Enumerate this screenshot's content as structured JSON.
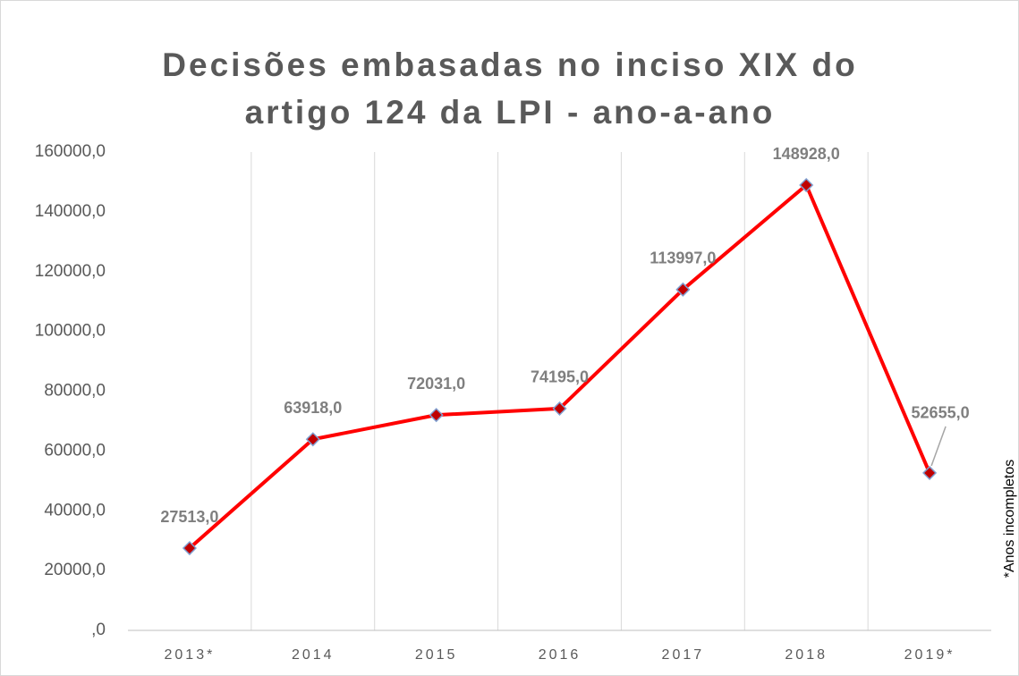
{
  "chart_data": {
    "type": "line",
    "title": [
      "Decisões embasadas no inciso XIX do",
      "artigo 124 da LPI - ano-a-ano"
    ],
    "categories": [
      "2013*",
      "2014",
      "2015",
      "2016",
      "2017",
      "2018",
      "2019*"
    ],
    "series": [
      {
        "name": "Decisões",
        "color": "#ff0000",
        "marker_color": "#c00000",
        "values": [
          27513,
          63918,
          72031,
          74195,
          113997,
          148928,
          52655
        ],
        "value_labels": [
          "27513,0",
          "63918,0",
          "72031,0",
          "74195,0",
          "113997,0",
          "148928,0",
          "52655,0"
        ]
      }
    ],
    "ylim": [
      0,
      160000
    ],
    "yticks": [
      {
        "value": 0,
        "label": ",0"
      },
      {
        "value": 20000,
        "label": "20000,0"
      },
      {
        "value": 40000,
        "label": "40000,0"
      },
      {
        "value": 60000,
        "label": "60000,0"
      },
      {
        "value": 80000,
        "label": "80000,0"
      },
      {
        "value": 100000,
        "label": "100000,0"
      },
      {
        "value": 120000,
        "label": "120000,0"
      },
      {
        "value": 140000,
        "label": "140000,0"
      },
      {
        "value": 160000,
        "label": "160000,0"
      }
    ],
    "grid": "x",
    "annotation": "*Anos incompletos"
  }
}
